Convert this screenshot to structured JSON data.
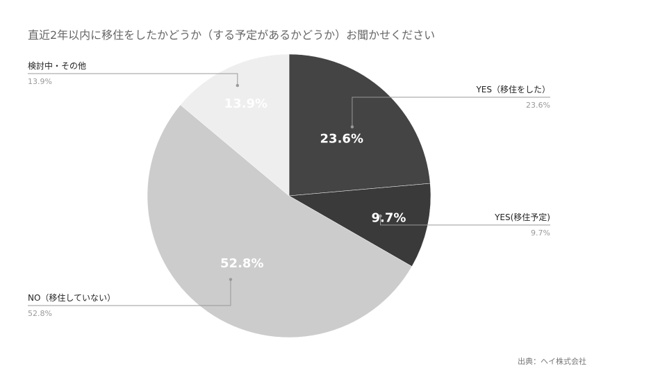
{
  "chart_data": {
    "type": "pie",
    "title": "直近2年以内に移住をしたかどうか（する予定があるかどうか）お聞かせください",
    "slices": [
      {
        "name": "YES（移住をした）",
        "value": 23.6,
        "label": "23.6%",
        "color": "#444444"
      },
      {
        "name": "YES(移住予定)",
        "value": 9.7,
        "label": "9.7%",
        "color": "#3a3a3a"
      },
      {
        "name": "NO（移住していない）",
        "value": 52.8,
        "label": "52.8%",
        "color": "#cccccc"
      },
      {
        "name": "検討中・その他",
        "value": 13.9,
        "label": "13.9%",
        "color": "#eeeeee"
      }
    ],
    "start_angle": "12 o'clock",
    "direction": "clockwise"
  },
  "footer": {
    "source": "出典：ヘイ株式会社"
  }
}
